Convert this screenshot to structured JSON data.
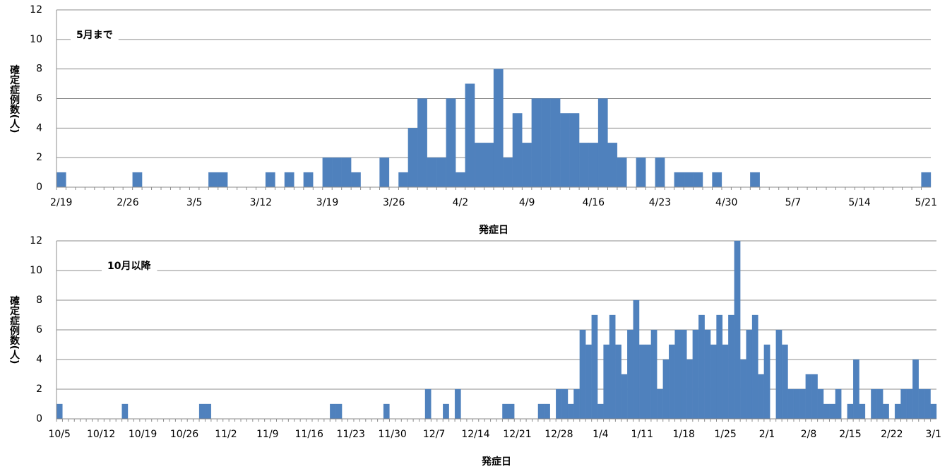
{
  "chart_data": [
    {
      "type": "bar",
      "annotation": "5月まで",
      "xlabel": "発症日",
      "ylabel": "確定症例数(人)",
      "categories": [
        "2/19",
        null,
        null,
        null,
        null,
        null,
        null,
        "2/26",
        null,
        null,
        null,
        null,
        null,
        null,
        "3/5",
        null,
        null,
        null,
        null,
        null,
        null,
        "3/12",
        null,
        null,
        null,
        null,
        null,
        null,
        "3/19",
        null,
        null,
        null,
        null,
        null,
        null,
        "3/26",
        null,
        null,
        null,
        null,
        null,
        null,
        "4/2",
        null,
        null,
        null,
        null,
        null,
        null,
        "4/9",
        null,
        null,
        null,
        null,
        null,
        null,
        "4/16",
        null,
        null,
        null,
        null,
        null,
        null,
        "4/23",
        null,
        null,
        null,
        null,
        null,
        null,
        "4/30",
        null,
        null,
        null,
        null,
        null,
        null,
        "5/7",
        null,
        null,
        null,
        null,
        null,
        null,
        "5/14",
        null,
        null,
        null,
        null,
        null,
        null,
        "5/21"
      ],
      "values": [
        1,
        0,
        0,
        0,
        0,
        0,
        0,
        0,
        1,
        0,
        0,
        0,
        0,
        0,
        0,
        0,
        1,
        1,
        0,
        0,
        0,
        0,
        1,
        0,
        1,
        0,
        1,
        0,
        2,
        2,
        2,
        1,
        0,
        0,
        2,
        0,
        1,
        4,
        6,
        2,
        2,
        6,
        1,
        7,
        3,
        3,
        8,
        2,
        5,
        3,
        6,
        6,
        6,
        5,
        5,
        3,
        3,
        6,
        3,
        2,
        0,
        2,
        0,
        2,
        0,
        1,
        1,
        1,
        0,
        1,
        0,
        0,
        0,
        1,
        0,
        0,
        0,
        0,
        0,
        0,
        0,
        0,
        0,
        0,
        0,
        0,
        0,
        0,
        0,
        0,
        0,
        1
      ],
      "color": "#4f81bd",
      "ylim": [
        0,
        12
      ],
      "yticks": [
        0,
        2,
        4,
        6,
        8,
        10,
        12
      ],
      "grid": true
    },
    {
      "type": "bar",
      "annotation": "10月以降",
      "xlabel": "発症日",
      "ylabel": "確定症例数(人)",
      "categories": [
        "10/5",
        null,
        null,
        null,
        null,
        null,
        null,
        "10/12",
        null,
        null,
        null,
        null,
        null,
        null,
        "10/19",
        null,
        null,
        null,
        null,
        null,
        null,
        "10/26",
        null,
        null,
        null,
        null,
        null,
        null,
        "11/2",
        null,
        null,
        null,
        null,
        null,
        null,
        "11/9",
        null,
        null,
        null,
        null,
        null,
        null,
        "11/16",
        null,
        null,
        null,
        null,
        null,
        null,
        "11/23",
        null,
        null,
        null,
        null,
        null,
        null,
        "11/30",
        null,
        null,
        null,
        null,
        null,
        null,
        "12/7",
        null,
        null,
        null,
        null,
        null,
        null,
        "12/14",
        null,
        null,
        null,
        null,
        null,
        null,
        "12/21",
        null,
        null,
        null,
        null,
        null,
        null,
        "12/28",
        null,
        null,
        null,
        null,
        null,
        null,
        "1/4",
        null,
        null,
        null,
        null,
        null,
        null,
        "1/11",
        null,
        null,
        null,
        null,
        null,
        null,
        "1/18",
        null,
        null,
        null,
        null,
        null,
        null,
        "1/25",
        null,
        null,
        null,
        null,
        null,
        null,
        "2/1",
        null,
        null,
        null,
        null,
        null,
        null,
        "2/8",
        null,
        null,
        null,
        null,
        null,
        null,
        "2/15",
        null,
        null,
        null,
        null,
        null,
        null,
        "2/22",
        null,
        null,
        null,
        null,
        null,
        null,
        "3/1"
      ],
      "values": [
        1,
        0,
        0,
        0,
        0,
        0,
        0,
        0,
        0,
        0,
        0,
        1,
        0,
        0,
        0,
        0,
        0,
        0,
        0,
        0,
        0,
        0,
        0,
        0,
        1,
        1,
        0,
        0,
        0,
        0,
        0,
        0,
        0,
        0,
        0,
        0,
        0,
        0,
        0,
        0,
        0,
        0,
        0,
        0,
        0,
        0,
        1,
        1,
        0,
        0,
        0,
        0,
        0,
        0,
        0,
        1,
        0,
        0,
        0,
        0,
        0,
        0,
        2,
        0,
        0,
        1,
        0,
        2,
        0,
        0,
        0,
        0,
        0,
        0,
        0,
        1,
        1,
        0,
        0,
        0,
        0,
        1,
        1,
        0,
        2,
        2,
        1,
        2,
        6,
        5,
        7,
        1,
        5,
        7,
        5,
        3,
        6,
        8,
        5,
        5,
        6,
        2,
        4,
        5,
        6,
        6,
        4,
        6,
        7,
        6,
        5,
        7,
        5,
        7,
        12,
        4,
        6,
        7,
        3,
        5,
        0,
        6,
        5,
        2,
        2,
        2,
        3,
        3,
        2,
        1,
        1,
        2,
        0,
        1,
        4,
        1,
        0,
        2,
        2,
        1,
        0,
        1,
        2,
        2,
        4,
        2,
        2,
        1
      ],
      "color": "#4f81bd",
      "ylim": [
        0,
        12
      ],
      "yticks": [
        0,
        2,
        4,
        6,
        8,
        10,
        12
      ],
      "grid": true
    }
  ]
}
